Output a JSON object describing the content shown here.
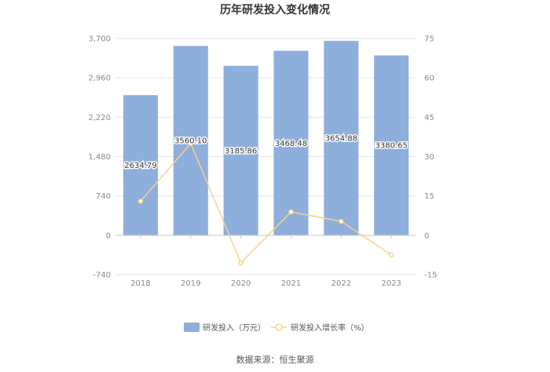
{
  "chart_data": {
    "type": "bar",
    "title": "历年研发投入变化情况",
    "categories": [
      "2018",
      "2019",
      "2020",
      "2021",
      "2022",
      "2023"
    ],
    "series": [
      {
        "name": "研发投入（万元）",
        "type": "bar",
        "axis": "left",
        "values": [
          2634.79,
          3560.1,
          3185.86,
          3468.48,
          3654.88,
          3380.65
        ],
        "labels": [
          "2634.79",
          "3560.10",
          "3185.86",
          "3468.48",
          "3654.88",
          "3380.65"
        ]
      },
      {
        "name": "研发投入增长率（%）",
        "type": "line",
        "axis": "right",
        "values": [
          13,
          35,
          -10.5,
          8.9,
          5.3,
          -7.5
        ]
      }
    ],
    "y_left": {
      "ylim": [
        -740,
        3700
      ],
      "ticks": [
        "3,700",
        "2,960",
        "2,220",
        "1,480",
        "740",
        "0",
        "-740"
      ]
    },
    "y_right": {
      "ylim": [
        -15,
        75
      ],
      "ticks": [
        "75",
        "60",
        "45",
        "30",
        "15",
        "0",
        "-15"
      ]
    },
    "colors": {
      "bar": "#8eaedb",
      "line": "#f6d48a",
      "grid": "#e6e6e6"
    },
    "legend_placement": "bottom",
    "grid": true
  },
  "source": "数据来源：恒生聚源"
}
